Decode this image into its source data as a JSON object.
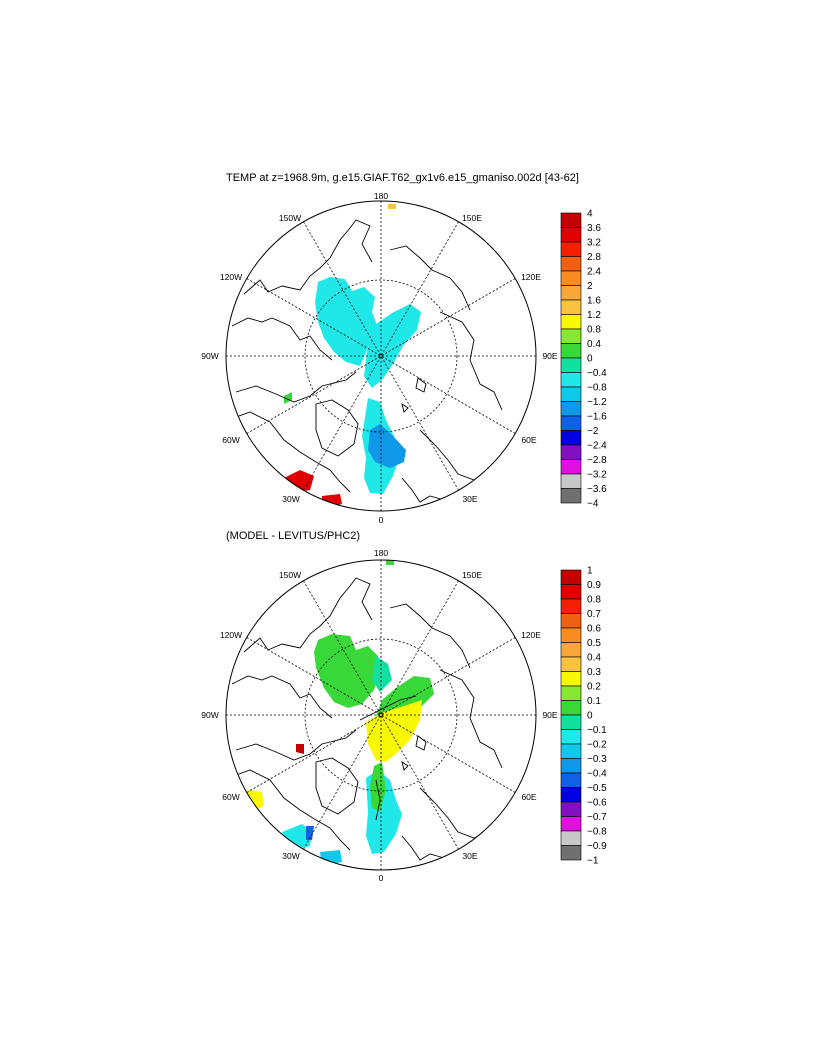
{
  "panel1": {
    "title": "TEMP at z=1968.9m, g.e15.GIAF.T62_gx1v6.e15_gmaniso.002d [43-62]",
    "lon_labels": [
      "180",
      "150W",
      "150E",
      "120W",
      "120E",
      "90W",
      "90E",
      "60W",
      "60E",
      "30W",
      "30E",
      "0"
    ],
    "colorbar_labels": [
      "4",
      "3.6",
      "3.2",
      "2.8",
      "2.4",
      "2",
      "1.6",
      "1.2",
      "0.8",
      "0.4",
      "0",
      "−0.4",
      "−0.8",
      "−1.2",
      "−1.6",
      "−2",
      "−2.4",
      "−2.8",
      "−3.2",
      "−3.6",
      "−4"
    ]
  },
  "panel2": {
    "title": "(MODEL - LEVITUS/PHC2)",
    "lon_labels": [
      "180",
      "150W",
      "150E",
      "120W",
      "120E",
      "90W",
      "90E",
      "60W",
      "60E",
      "30W",
      "30E",
      "0"
    ],
    "colorbar_labels": [
      "1",
      "0.9",
      "0.8",
      "0.7",
      "0.6",
      "0.5",
      "0.4",
      "0.3",
      "0.2",
      "0.1",
      "0",
      "−0.1",
      "−0.2",
      "−0.3",
      "−0.4",
      "−0.5",
      "−0.6",
      "−0.7",
      "−0.8",
      "−0.9",
      "−1"
    ]
  },
  "colorbar_colors": [
    "#c40000",
    "#e00000",
    "#f52000",
    "#f06010",
    "#f88c20",
    "#f8a838",
    "#f8c440",
    "#f8f800",
    "#88e830",
    "#38d838",
    "#10e0a0",
    "#20e8e8",
    "#10c8e8",
    "#1098e8",
    "#1060e8",
    "#0000e0",
    "#8010c0",
    "#e010e0",
    "#c8c8c8",
    "#707070"
  ]
}
